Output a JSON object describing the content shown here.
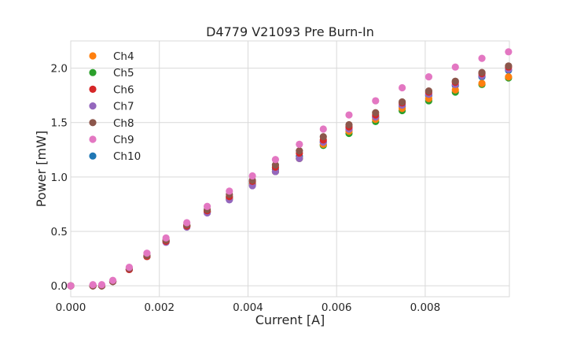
{
  "chart_data": {
    "type": "scatter",
    "title": "D4779 V21093 Pre Burn-In",
    "xlabel": "Current [A]",
    "ylabel": "Power [mW]",
    "xlim": [
      0,
      0.0099
    ],
    "ylim": [
      -0.1,
      2.25
    ],
    "xticks": [
      0,
      0.002,
      0.004,
      0.006,
      0.008
    ],
    "xtick_labels": [
      "0.000",
      "0.002",
      "0.004",
      "0.006",
      "0.008"
    ],
    "yticks": [
      0,
      0.5,
      1.0,
      1.5,
      2.0
    ],
    "ytick_labels": [
      "0.0",
      "0.5",
      "1.0",
      "1.5",
      "2.0"
    ],
    "grid": true,
    "legend_position": "top-left",
    "x": [
      0.0,
      0.0005,
      0.0007,
      0.00095,
      0.00132,
      0.00172,
      0.00215,
      0.00262,
      0.00308,
      0.00358,
      0.0041,
      0.00462,
      0.00516,
      0.0057,
      0.00628,
      0.00688,
      0.00748,
      0.00808,
      0.00868,
      0.00928,
      0.00988
    ],
    "series": [
      {
        "name": "Ch4",
        "color": "#ff7f0e",
        "values": [
          0.0,
          0.0,
          0.0,
          0.04,
          0.15,
          0.27,
          0.41,
          0.55,
          0.68,
          0.8,
          0.93,
          1.05,
          1.17,
          1.3,
          1.42,
          1.53,
          1.63,
          1.72,
          1.8,
          1.86,
          1.92
        ]
      },
      {
        "name": "Ch5",
        "color": "#2ca02c",
        "values": [
          0.0,
          0.0,
          0.0,
          0.04,
          0.15,
          0.27,
          0.41,
          0.55,
          0.68,
          0.8,
          0.93,
          1.05,
          1.17,
          1.29,
          1.4,
          1.51,
          1.61,
          1.7,
          1.78,
          1.85,
          1.91
        ]
      },
      {
        "name": "Ch6",
        "color": "#d62728",
        "values": [
          0.0,
          0.0,
          0.0,
          0.04,
          0.15,
          0.27,
          0.41,
          0.55,
          0.69,
          0.82,
          0.96,
          1.09,
          1.22,
          1.34,
          1.46,
          1.57,
          1.68,
          1.78,
          1.87,
          1.95,
          2.01
        ]
      },
      {
        "name": "Ch7",
        "color": "#9467bd",
        "values": [
          0.0,
          0.0,
          0.0,
          0.04,
          0.15,
          0.27,
          0.4,
          0.54,
          0.67,
          0.79,
          0.92,
          1.05,
          1.17,
          1.32,
          1.44,
          1.55,
          1.66,
          1.76,
          1.85,
          1.93,
          1.99
        ]
      },
      {
        "name": "Ch8",
        "color": "#8c564b",
        "values": [
          0.0,
          0.0,
          0.0,
          0.04,
          0.16,
          0.28,
          0.42,
          0.56,
          0.7,
          0.84,
          0.97,
          1.11,
          1.24,
          1.37,
          1.48,
          1.59,
          1.69,
          1.79,
          1.88,
          1.96,
          2.02
        ]
      },
      {
        "name": "Ch9",
        "color": "#e377c2",
        "values": [
          0.0,
          0.01,
          0.01,
          0.05,
          0.17,
          0.3,
          0.44,
          0.58,
          0.73,
          0.87,
          1.01,
          1.16,
          1.3,
          1.44,
          1.57,
          1.7,
          1.82,
          1.92,
          2.01,
          2.09,
          2.15
        ]
      },
      {
        "name": "Ch10",
        "color": "#1f77b4",
        "values": [
          0.0,
          0.0,
          0.0,
          0.04,
          0.15,
          0.27,
          0.41,
          0.55,
          0.68,
          0.81,
          0.94,
          1.07,
          1.19,
          1.32,
          1.44,
          1.55,
          1.65,
          1.75,
          1.84,
          1.92,
          1.98
        ]
      }
    ],
    "draw_order": [
      "Ch10",
      "Ch5",
      "Ch4",
      "Ch7",
      "Ch6",
      "Ch8",
      "Ch9"
    ]
  }
}
